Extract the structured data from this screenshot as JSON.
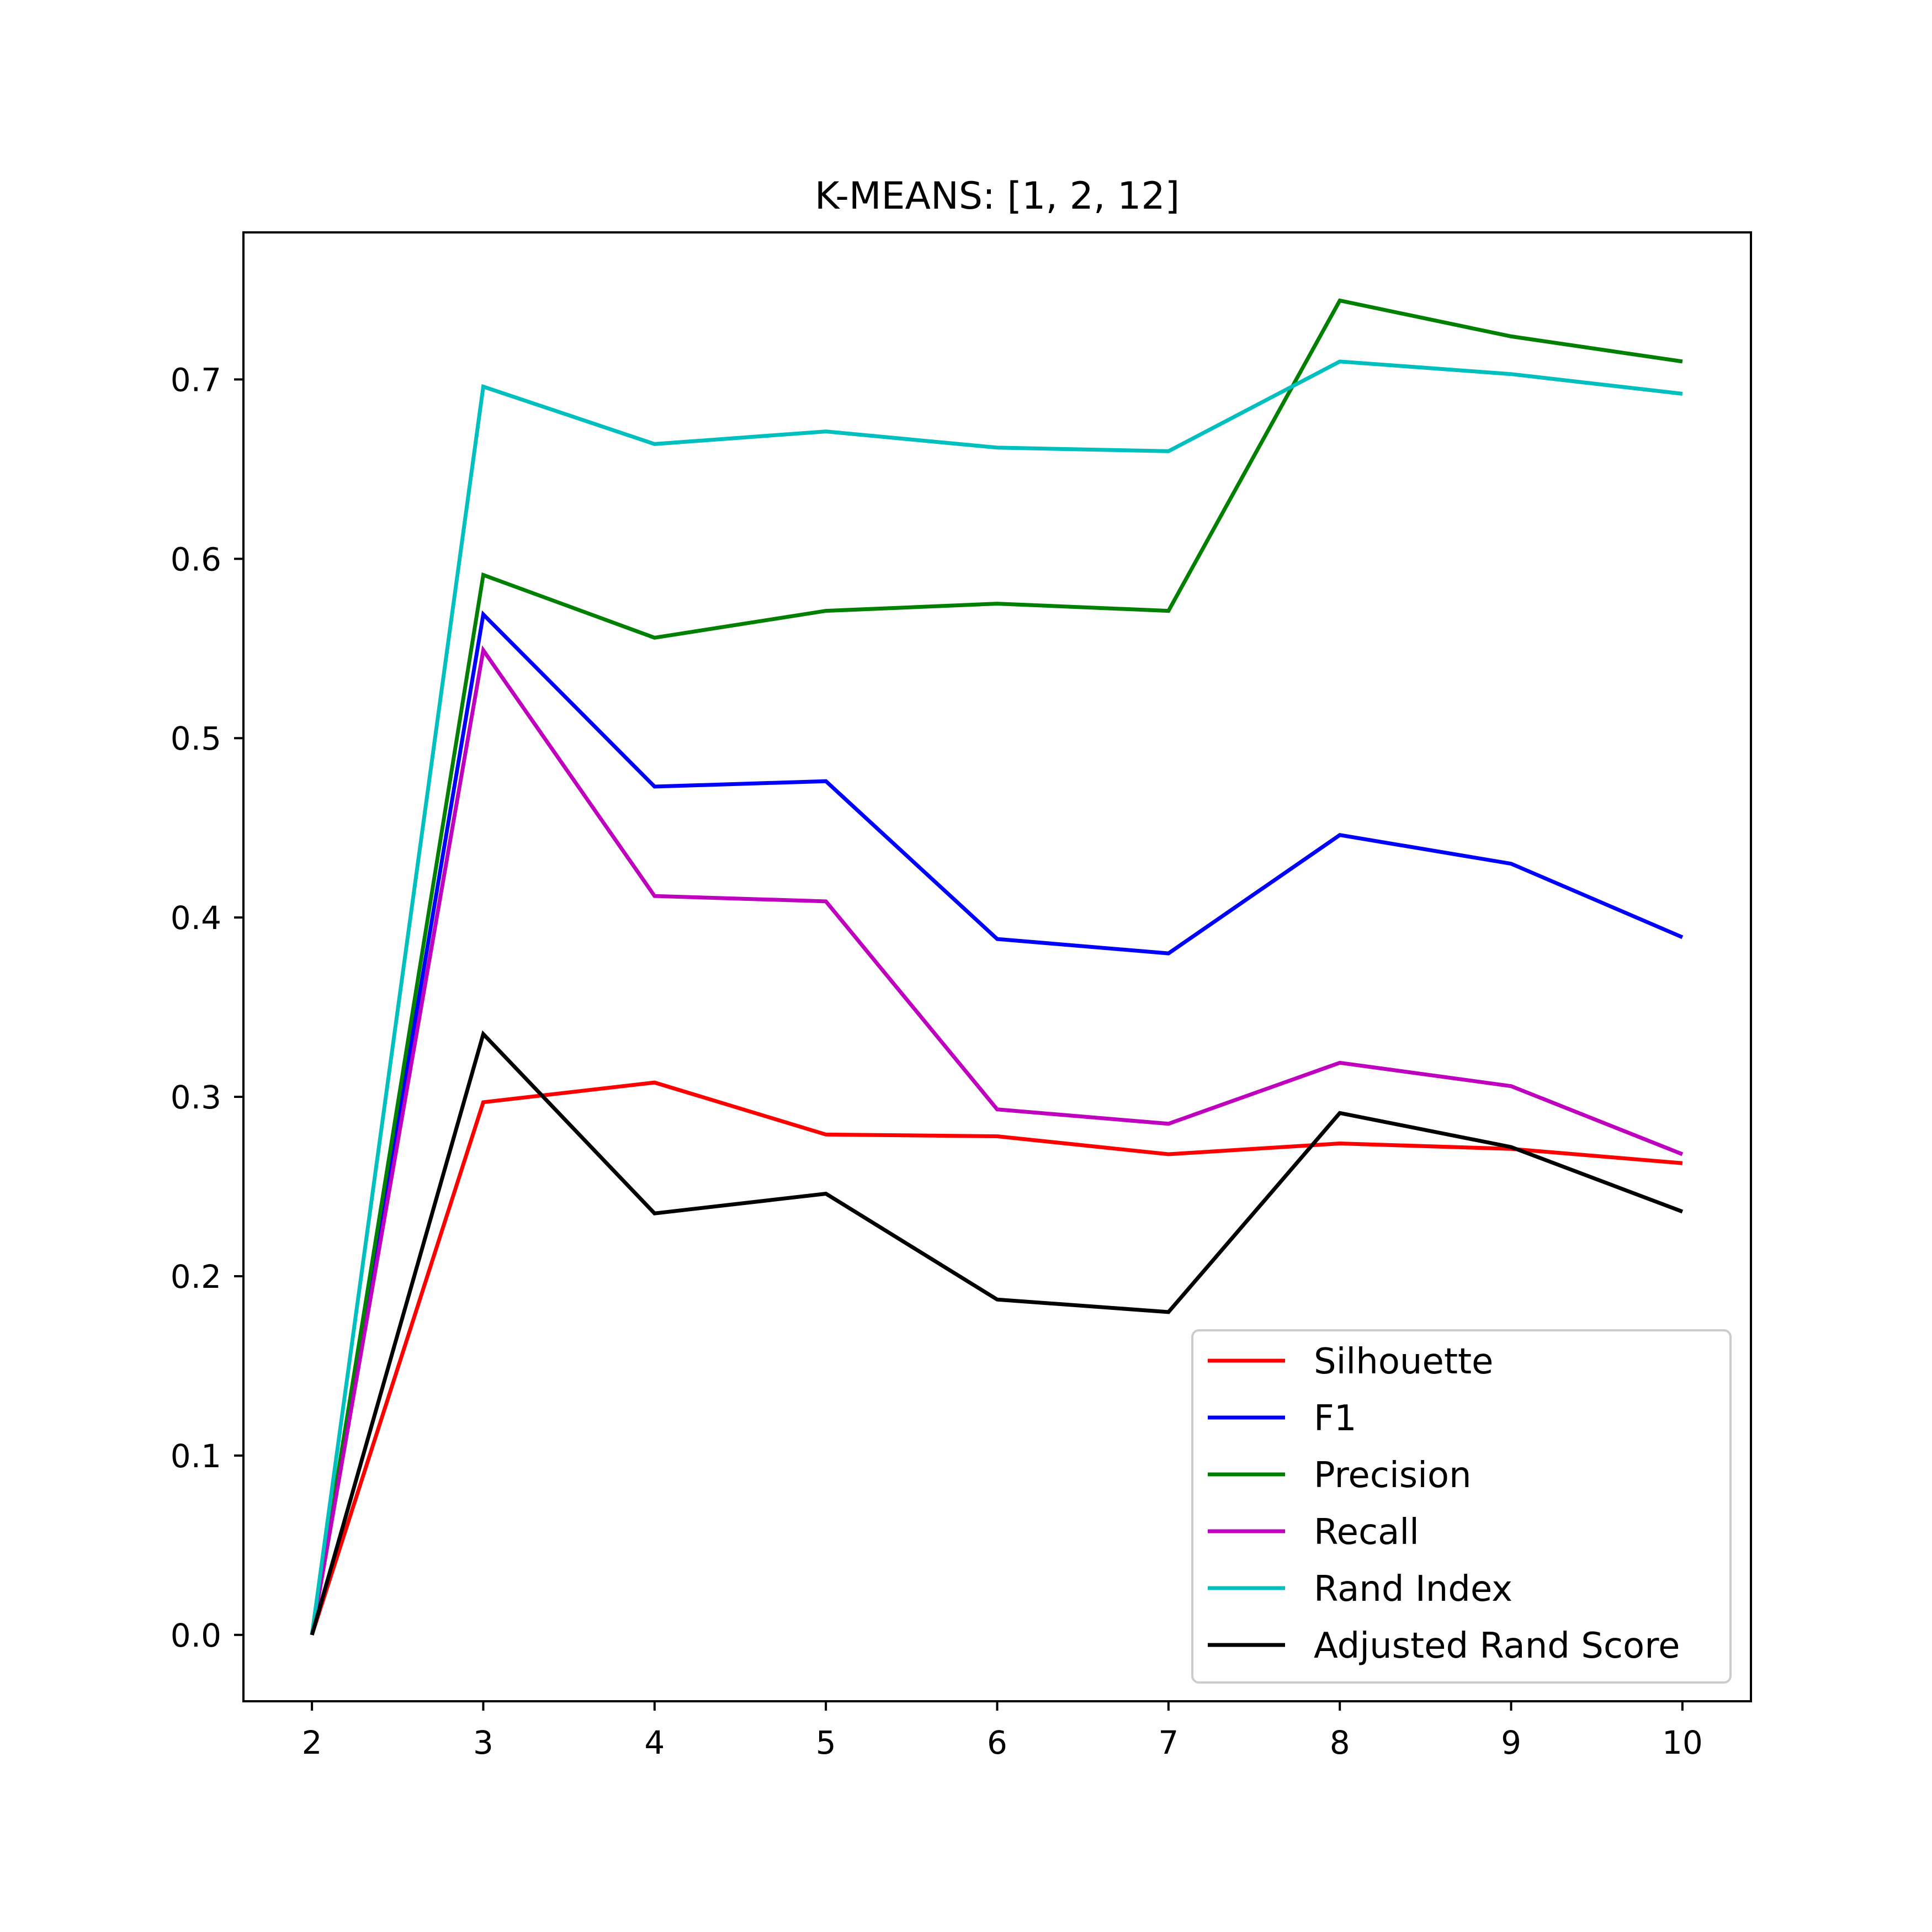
{
  "chart_data": {
    "type": "line",
    "title": "K-MEANS: [1, 2, 12]",
    "xlabel": "",
    "ylabel": "",
    "x": [
      2,
      3,
      4,
      5,
      6,
      7,
      8,
      9,
      10
    ],
    "xlim": [
      1.6,
      10.4
    ],
    "ylim": [
      -0.037,
      0.782
    ],
    "x_ticks": [
      2,
      3,
      4,
      5,
      6,
      7,
      8,
      9,
      10
    ],
    "y_ticks": [
      0.0,
      0.1,
      0.2,
      0.3,
      0.4,
      0.5,
      0.6,
      0.7
    ],
    "grid": false,
    "legend_position": "lower-right",
    "series": [
      {
        "name": "Silhouette",
        "color": "#ff0000",
        "values": [
          0.0,
          0.297,
          0.308,
          0.279,
          0.278,
          0.268,
          0.274,
          0.271,
          0.263
        ]
      },
      {
        "name": "F1",
        "color": "#0000ff",
        "values": [
          0.0,
          0.569,
          0.473,
          0.476,
          0.388,
          0.38,
          0.446,
          0.43,
          0.389
        ]
      },
      {
        "name": "Precision",
        "color": "#008000",
        "values": [
          0.0,
          0.591,
          0.556,
          0.571,
          0.575,
          0.571,
          0.744,
          0.724,
          0.71
        ]
      },
      {
        "name": "Recall",
        "color": "#bf00bf",
        "values": [
          0.0,
          0.549,
          0.412,
          0.409,
          0.293,
          0.285,
          0.319,
          0.306,
          0.268
        ]
      },
      {
        "name": "Rand Index",
        "color": "#00bfbf",
        "values": [
          0.0,
          0.696,
          0.664,
          0.671,
          0.662,
          0.66,
          0.71,
          0.703,
          0.692
        ]
      },
      {
        "name": "Adjusted Rand Score",
        "color": "#000000",
        "values": [
          0.0,
          0.335,
          0.235,
          0.246,
          0.187,
          0.18,
          0.291,
          0.272,
          0.236
        ]
      }
    ]
  }
}
